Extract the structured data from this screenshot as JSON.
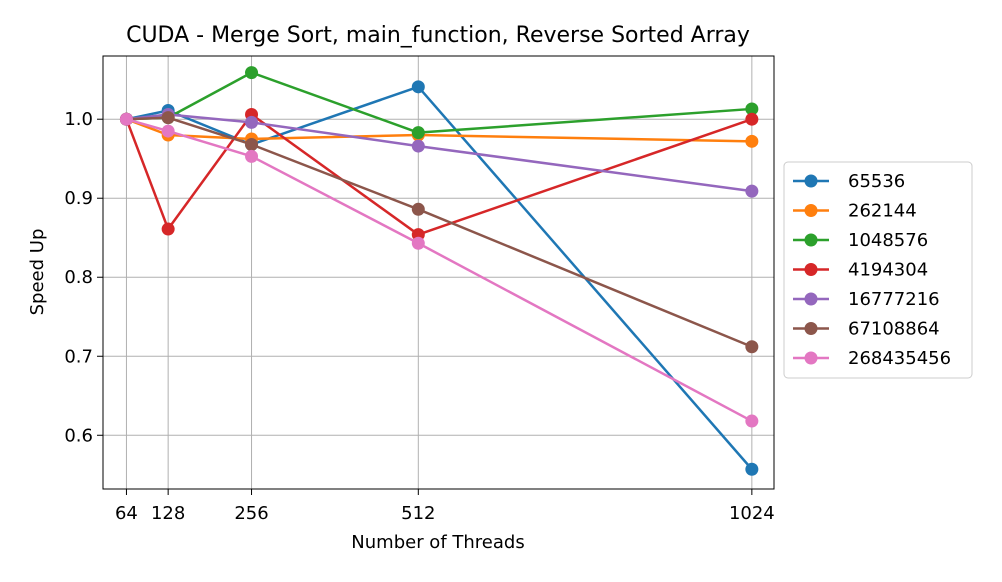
{
  "chart_data": {
    "type": "line",
    "title": "CUDA - Merge Sort, main_function, Reverse Sorted Array",
    "xlabel": "Number of Threads",
    "ylabel": "Speed Up",
    "x": [
      64,
      128,
      256,
      512,
      1024
    ],
    "x_tick_labels": [
      "64",
      "128",
      "256",
      "512",
      "1024"
    ],
    "xlim": [
      28,
      1058
    ],
    "ylim": [
      0.532,
      1.08
    ],
    "y_ticks": [
      0.6,
      0.7,
      0.8,
      0.9,
      1.0
    ],
    "y_tick_labels": [
      "0.6",
      "0.7",
      "0.8",
      "0.9",
      "1.0"
    ],
    "grid": true,
    "legend_position": "outside-right",
    "series": [
      {
        "name": "65536",
        "color": "#1f77b4",
        "values": [
          1.0,
          1.011,
          0.968,
          1.041,
          0.557
        ]
      },
      {
        "name": "262144",
        "color": "#ff7f0e",
        "values": [
          1.0,
          0.98,
          0.975,
          0.98,
          0.972
        ]
      },
      {
        "name": "1048576",
        "color": "#2ca02c",
        "values": [
          1.0,
          1.002,
          1.059,
          0.983,
          1.013
        ]
      },
      {
        "name": "4194304",
        "color": "#d62728",
        "values": [
          1.0,
          0.861,
          1.006,
          0.854,
          1.0
        ]
      },
      {
        "name": "16777216",
        "color": "#9467bd",
        "values": [
          1.0,
          1.006,
          0.996,
          0.966,
          0.909
        ]
      },
      {
        "name": "67108864",
        "color": "#8c564b",
        "values": [
          1.0,
          1.002,
          0.968,
          0.886,
          0.712
        ]
      },
      {
        "name": "268435456",
        "color": "#e377c2",
        "values": [
          1.0,
          0.985,
          0.953,
          0.843,
          0.618
        ]
      }
    ]
  }
}
